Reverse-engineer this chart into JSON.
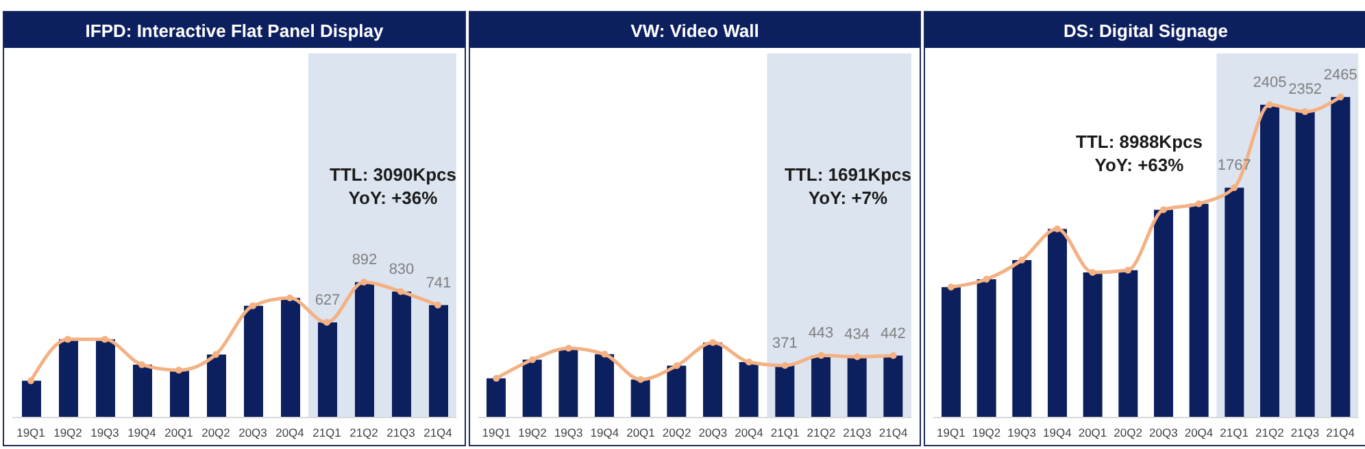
{
  "chart_data": [
    {
      "type": "bar",
      "title": "IFPD: Interactive Flat Panel Display",
      "categories": [
        "19Q1",
        "19Q2",
        "19Q3",
        "19Q4",
        "20Q1",
        "20Q2",
        "20Q3",
        "20Q4",
        "21Q1",
        "21Q2",
        "21Q3",
        "21Q4"
      ],
      "series": [
        {
          "color": "#0c1f5f",
          "values": [
            242,
            515,
            515,
            348,
            312,
            415,
            736,
            788,
            627,
            892,
            830,
            741
          ],
          "value_labels": [
            null,
            null,
            null,
            null,
            null,
            null,
            null,
            null,
            "627",
            "892",
            "830",
            "741"
          ]
        },
        {
          "type": "line",
          "color": "#f4b183",
          "values": [
            242,
            515,
            515,
            348,
            312,
            415,
            736,
            788,
            627,
            892,
            830,
            741
          ]
        }
      ],
      "ylim": [
        0,
        2400
      ],
      "tick_labels": "x",
      "marker": "circle",
      "grid": false,
      "legend": false,
      "bands": [
        {
          "axis": "x",
          "from": "21Q1",
          "to": "21Q4",
          "color": "#dce4f0"
        }
      ],
      "annotations": [
        "TTL: 3090Kpcs",
        "YoY: +36%"
      ]
    },
    {
      "type": "bar",
      "title": "VW: Video Wall",
      "categories": [
        "19Q1",
        "19Q2",
        "19Q3",
        "19Q4",
        "20Q1",
        "20Q2",
        "20Q3",
        "20Q4",
        "21Q1",
        "21Q2",
        "21Q3",
        "21Q4"
      ],
      "series": [
        {
          "color": "#0c1f5f",
          "values": [
            280,
            413,
            495,
            452,
            271,
            370,
            535,
            396,
            371,
            443,
            434,
            442
          ],
          "value_labels": [
            null,
            null,
            null,
            null,
            null,
            null,
            null,
            null,
            "371",
            "443",
            "434",
            "442"
          ]
        },
        {
          "type": "line",
          "color": "#f4b183",
          "values": [
            280,
            413,
            495,
            452,
            271,
            370,
            535,
            396,
            371,
            443,
            434,
            442
          ]
        }
      ],
      "ylim": [
        0,
        2600
      ],
      "tick_labels": "x",
      "marker": "circle",
      "grid": false,
      "legend": false,
      "bands": [
        {
          "axis": "x",
          "from": "21Q1",
          "to": "21Q4",
          "color": "#dce4f0"
        }
      ],
      "annotations": [
        "TTL: 1691Kpcs",
        "YoY: +7%"
      ]
    },
    {
      "type": "bar",
      "title": "DS: Digital Signage",
      "categories": [
        "19Q1",
        "19Q2",
        "19Q3",
        "19Q4",
        "20Q1",
        "20Q2",
        "20Q3",
        "20Q4",
        "21Q1",
        "21Q2",
        "21Q3",
        "21Q4"
      ],
      "series": [
        {
          "color": "#0c1f5f",
          "values": [
            1003,
            1063,
            1211,
            1450,
            1116,
            1133,
            1598,
            1644,
            1767,
            2405,
            2352,
            2465
          ],
          "value_labels": [
            null,
            null,
            null,
            null,
            null,
            null,
            null,
            null,
            "1767",
            "2405",
            "2352",
            "2465"
          ]
        },
        {
          "type": "line",
          "color": "#f4b183",
          "values": [
            1003,
            1063,
            1211,
            1450,
            1116,
            1133,
            1598,
            1644,
            1767,
            2405,
            2352,
            2465
          ]
        }
      ],
      "ylim": [
        0,
        2800
      ],
      "tick_labels": "x",
      "marker": "circle",
      "grid": false,
      "legend": false,
      "bands": [
        {
          "axis": "x",
          "from": "21Q1",
          "to": "21Q4",
          "color": "#dce4f0"
        }
      ],
      "annotations": [
        "TTL: 8988Kpcs",
        "YoY: +63%"
      ]
    }
  ]
}
